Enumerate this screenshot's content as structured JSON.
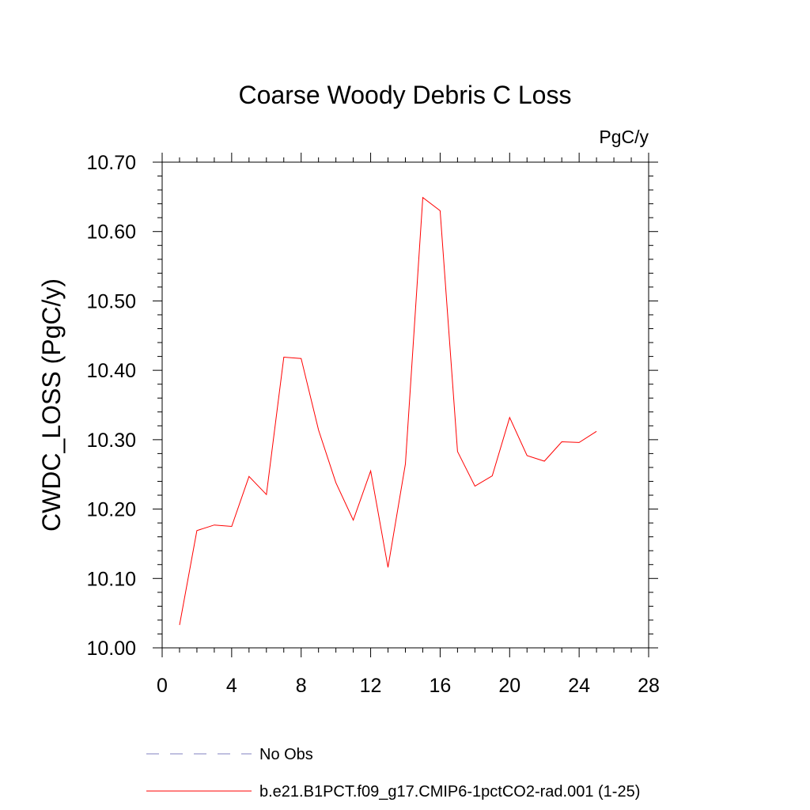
{
  "chart_data": {
    "type": "line",
    "title": "Coarse Woody Debris C Loss",
    "units_label": "PgC/y",
    "xlabel": "",
    "ylabel": "CWDC_LOSS  (PgC/y)",
    "xlim": [
      0,
      28
    ],
    "ylim": [
      10.0,
      10.7
    ],
    "x_ticks": [
      0,
      4,
      8,
      12,
      16,
      20,
      24,
      28
    ],
    "x_tick_labels": [
      "0",
      "4",
      "8",
      "12",
      "16",
      "20",
      "24",
      "28"
    ],
    "y_ticks": [
      10.0,
      10.1,
      10.2,
      10.3,
      10.4,
      10.5,
      10.6,
      10.7
    ],
    "y_tick_labels": [
      "10.00",
      "10.10",
      "10.20",
      "10.30",
      "10.40",
      "10.50",
      "10.60",
      "10.70"
    ],
    "grid": false,
    "legend_position": "bottom",
    "series": [
      {
        "name": "b.e21.B1PCT.f09_g17.CMIP6-1pctCO2-rad.001 (1-25)",
        "color": "#ff0000",
        "style": "solid",
        "x": [
          1,
          2,
          3,
          4,
          5,
          6,
          7,
          8,
          9,
          10,
          11,
          12,
          13,
          14,
          15,
          16,
          17,
          18,
          19,
          20,
          21,
          22,
          23,
          24,
          25
        ],
        "values": [
          10.033,
          10.169,
          10.177,
          10.175,
          10.247,
          10.221,
          10.419,
          10.417,
          10.314,
          10.238,
          10.184,
          10.255,
          10.116,
          10.265,
          10.649,
          10.63,
          10.283,
          10.233,
          10.248,
          10.332,
          10.277,
          10.269,
          10.297,
          10.296,
          10.312
        ]
      }
    ],
    "legend": [
      {
        "label": "No Obs",
        "color": "#8080c0",
        "style": "dashed"
      },
      {
        "label": "b.e21.B1PCT.f09_g17.CMIP6-1pctCO2-rad.001 (1-25)",
        "color": "#ff0000",
        "style": "solid"
      }
    ]
  }
}
